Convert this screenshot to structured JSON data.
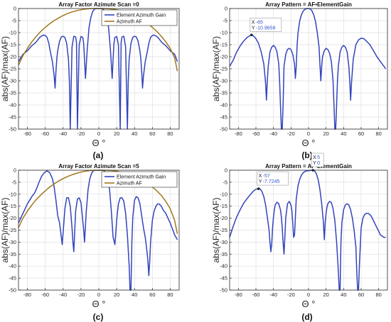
{
  "chart_data": [
    {
      "panel": "(a)",
      "type": "line",
      "title": "Array Factor Azimute Scan =0",
      "xlabel": "Θ °",
      "ylabel": "abs(AF)/max(AF)",
      "xlim": [
        -90,
        90
      ],
      "ylim": [
        -50,
        0
      ],
      "xticks": [
        -80,
        -60,
        -40,
        -20,
        0,
        20,
        40,
        60,
        80
      ],
      "yticks": [
        0,
        -5,
        -10,
        -15,
        -20,
        -25,
        -30,
        -35,
        -40,
        -45,
        -50
      ],
      "grid": true,
      "legend_position": "top-right",
      "series": [
        {
          "name": "Element Azimuth Gain",
          "color": "#3344bb",
          "x": [
            -90,
            -85,
            -80,
            -75,
            -72,
            -70,
            -66,
            -64,
            -62,
            -60,
            -58,
            -56,
            -54,
            -52,
            -50,
            -49,
            -48,
            -47,
            -46,
            -44,
            -42,
            -40,
            -38,
            -36,
            -34,
            -33,
            -32,
            -30,
            -28,
            -26,
            -25,
            -24,
            -22,
            -20,
            -18,
            -17,
            -16,
            -15,
            -13,
            -11,
            -9,
            -7,
            -5,
            -3,
            -1,
            0,
            1,
            3,
            5,
            7,
            9,
            11,
            13,
            15,
            16,
            17,
            18,
            20,
            22,
            24,
            25,
            26,
            28,
            30,
            32,
            33,
            34,
            36,
            38,
            40,
            42,
            44,
            46,
            47,
            48,
            49,
            50,
            52,
            54,
            56,
            58,
            60,
            62,
            64,
            66,
            70,
            72,
            75,
            80,
            85,
            88
          ],
          "y": [
            -22,
            -19,
            -17.5,
            -15.4,
            -14.5,
            -13.8,
            -11.9,
            -11.4,
            -11.0,
            -11.2,
            -12.0,
            -14.5,
            -18.5,
            -22,
            -28,
            -33,
            -26,
            -20.5,
            -17.5,
            -13.5,
            -11.8,
            -11.5,
            -12.0,
            -14.5,
            -21,
            -30,
            -50,
            -16,
            -11.5,
            -11.8,
            -14,
            -50,
            -15,
            -11.6,
            -12.0,
            -14.5,
            -21,
            -29,
            -17,
            -8,
            -3.8,
            -1.4,
            -0.3,
            0,
            -0.1,
            0,
            -0.1,
            0,
            -0.3,
            -1.4,
            -3.8,
            -8,
            -17,
            -29,
            -21,
            -14.5,
            -12.0,
            -11.6,
            -15,
            -50,
            -14,
            -11.8,
            -11.5,
            -16,
            -50,
            -30,
            -21,
            -14.5,
            -12.0,
            -11.5,
            -11.8,
            -13.5,
            -17.5,
            -20.5,
            -26,
            -33,
            -28,
            -22,
            -18.5,
            -14.5,
            -12.0,
            -11.2,
            -11.0,
            -11.4,
            -11.9,
            -13.8,
            -14.5,
            -15.4,
            -17.5,
            -19,
            -22
          ]
        },
        {
          "name": "Azimuth AF",
          "color": "#a0781e",
          "x": [
            -90,
            -85,
            -80,
            -75,
            -70,
            -65,
            -60,
            -55,
            -50,
            -45,
            -40,
            -35,
            -30,
            -25,
            -20,
            -15,
            -10,
            -5,
            0,
            5,
            10,
            15,
            20,
            25,
            30,
            35,
            40,
            45,
            50,
            55,
            60,
            65,
            70,
            75,
            80,
            85,
            88
          ],
          "y": [
            -23.5,
            -19.5,
            -16.5,
            -13.8,
            -11.5,
            -9.5,
            -7.8,
            -6.3,
            -5.0,
            -3.9,
            -2.9,
            -2.1,
            -1.4,
            -0.9,
            -0.5,
            -0.2,
            -0.05,
            0,
            0,
            0,
            -0.05,
            -0.2,
            -0.5,
            -0.9,
            -1.4,
            -2.1,
            -2.9,
            -3.9,
            -5.0,
            -6.3,
            -7.8,
            -9.5,
            -11.5,
            -13.8,
            -16.5,
            -20.5,
            -26
          ]
        }
      ]
    },
    {
      "panel": "(b)",
      "type": "line",
      "title": "Array Pattern = AF•ElementGain",
      "xlabel": "Θ °",
      "ylabel": "abs(AF)/max(AF)",
      "xlim": [
        -90,
        90
      ],
      "ylim": [
        -50,
        0
      ],
      "xticks": [
        -80,
        -60,
        -40,
        -20,
        0,
        20,
        40,
        60,
        80
      ],
      "yticks": [
        0,
        -5,
        -10,
        -15,
        -20,
        -25,
        -30,
        -35,
        -40,
        -45,
        -50
      ],
      "grid": true,
      "datatips": [
        {
          "x": -65,
          "y": -10.9658,
          "x_label": "X",
          "y_label": "Y",
          "x_text": "-65",
          "y_text": "-10.9658"
        }
      ],
      "series": [
        {
          "name": "",
          "color": "#3344bb",
          "x": [
            -90,
            -86,
            -82,
            -78,
            -74,
            -70,
            -67,
            -65,
            -63,
            -60,
            -57,
            -54,
            -51,
            -49,
            -48,
            -47,
            -46,
            -44,
            -42,
            -40,
            -38,
            -36,
            -34,
            -33,
            -32,
            -31,
            -30,
            -29,
            -28,
            -26,
            -24,
            -22,
            -20,
            -18,
            -16,
            -15,
            -14,
            -13,
            -12,
            -10,
            -8,
            -6,
            -4,
            -2,
            0,
            2,
            4,
            6,
            8,
            10,
            12,
            13,
            14,
            15,
            16,
            18,
            20,
            22,
            24,
            26,
            28,
            29,
            30,
            31,
            32,
            33,
            34,
            36,
            38,
            40,
            42,
            44,
            46,
            47,
            48,
            49,
            51,
            54,
            57,
            60,
            63,
            66,
            70,
            74,
            78,
            82,
            86,
            88
          ],
          "y": [
            -24,
            -21.5,
            -18,
            -15.5,
            -13.5,
            -12,
            -11.3,
            -11.0,
            -11.3,
            -12.5,
            -14.5,
            -18,
            -23,
            -31,
            -38,
            -30,
            -24,
            -18,
            -16,
            -15.3,
            -16,
            -18,
            -23,
            -30,
            -40,
            -50,
            -50,
            -40,
            -24,
            -19,
            -17,
            -16.5,
            -17,
            -19,
            -23,
            -29,
            -24,
            -15,
            -10,
            -5,
            -2.5,
            -1,
            -0.3,
            0,
            0,
            -0.2,
            -1,
            -2.7,
            -5.5,
            -10,
            -16,
            -23,
            -30,
            -24,
            -20,
            -17.5,
            -16.5,
            -17,
            -18.5,
            -22,
            -30,
            -40,
            -50,
            -50,
            -40,
            -30,
            -24,
            -18,
            -16,
            -15.3,
            -16,
            -18,
            -24,
            -30,
            -38,
            -31,
            -21,
            -15,
            -13,
            -12.3,
            -12.5,
            -13.5,
            -15,
            -17.5,
            -20,
            -22,
            -24,
            -25
          ]
        }
      ]
    },
    {
      "panel": "(c)",
      "type": "line",
      "title": "Array Factor Azimute Scan =5",
      "xlabel": "Θ °",
      "ylabel": "abs(AF)/max(AF)",
      "xlim": [
        -90,
        90
      ],
      "ylim": [
        -50,
        0
      ],
      "xticks": [
        -80,
        -60,
        -40,
        -20,
        0,
        20,
        40,
        60,
        80
      ],
      "yticks": [
        0,
        -5,
        -10,
        -15,
        -20,
        -25,
        -30,
        -35,
        -40,
        -45,
        -50
      ],
      "grid": true,
      "legend_position": "top-right",
      "series": [
        {
          "name": "Element Azimuth Gain",
          "color": "#3344bb",
          "x": [
            -90,
            -85,
            -80,
            -75,
            -72,
            -70,
            -67,
            -64,
            -61,
            -58,
            -55,
            -52,
            -50,
            -48,
            -46,
            -44,
            -42,
            -41,
            -40,
            -38,
            -36,
            -34,
            -32,
            -30,
            -29,
            -28,
            -26,
            -24,
            -22,
            -20,
            -19,
            -18,
            -17,
            -16,
            -14,
            -12,
            -10,
            -8,
            -6,
            -4,
            -2,
            0,
            2,
            4,
            6,
            8,
            10,
            12,
            14,
            16,
            18,
            19,
            20,
            21,
            22,
            24,
            26,
            28,
            30,
            32,
            34,
            35,
            36,
            37,
            38,
            40,
            42,
            44,
            46,
            48,
            50,
            52,
            54,
            55,
            56,
            57,
            58,
            60,
            62,
            64,
            66,
            68,
            70,
            72,
            75,
            80,
            85,
            88
          ],
          "y": [
            -22,
            -18,
            -14,
            -11,
            -9.5,
            -8,
            -5,
            -2.5,
            -1,
            -0.3,
            -1,
            -3.5,
            -7,
            -12.5,
            -19,
            -22,
            -28,
            -31,
            -26,
            -16,
            -11.5,
            -11.5,
            -15,
            -24,
            -30,
            -34,
            -17,
            -12,
            -11.5,
            -13.5,
            -17,
            -21,
            -25,
            -30,
            -17,
            -8,
            -3.5,
            -1.2,
            -0.2,
            0,
            -0.1,
            0,
            -0.1,
            0,
            -0.2,
            -1.2,
            -3.5,
            -8,
            -17,
            -28,
            -31,
            -26,
            -21,
            -17,
            -14,
            -11.5,
            -11.5,
            -13,
            -18,
            -27,
            -40,
            -50,
            -50,
            -30,
            -20,
            -12.5,
            -11,
            -11.5,
            -14,
            -19,
            -24,
            -28,
            -34,
            -38,
            -44,
            -38,
            -30,
            -21,
            -17,
            -15,
            -14,
            -14.2,
            -15,
            -16.5,
            -18,
            -22,
            -27,
            -29
          ]
        },
        {
          "name": "Azimuth AF",
          "color": "#a0781e",
          "x": [
            -90,
            -85,
            -80,
            -75,
            -70,
            -65,
            -60,
            -55,
            -50,
            -45,
            -40,
            -35,
            -30,
            -25,
            -20,
            -15,
            -10,
            -5,
            0,
            5,
            10,
            15,
            20,
            25,
            30,
            35,
            40,
            45,
            50,
            55,
            60,
            65,
            70,
            75,
            80,
            85,
            88
          ],
          "y": [
            -24,
            -20,
            -17,
            -14.5,
            -12.2,
            -10.3,
            -8.6,
            -7.0,
            -5.7,
            -4.5,
            -3.5,
            -2.6,
            -1.9,
            -1.3,
            -0.8,
            -0.4,
            -0.15,
            -0.03,
            0,
            0,
            -0.03,
            -0.15,
            -0.4,
            -0.8,
            -1.3,
            -1.9,
            -2.6,
            -3.5,
            -4.5,
            -5.7,
            -7.0,
            -8.6,
            -10.5,
            -13,
            -16,
            -21,
            -26.5
          ]
        }
      ]
    },
    {
      "panel": "(d)",
      "type": "line",
      "title": "Array Pattern = AF•ElementGain",
      "xlabel": "Θ °",
      "ylabel": "abs(AF)/max(AF)",
      "xlim": [
        -90,
        90
      ],
      "ylim": [
        -50,
        0
      ],
      "xticks": [
        -80,
        -60,
        -40,
        -20,
        0,
        20,
        40,
        60,
        80
      ],
      "yticks": [
        0,
        -5,
        -10,
        -15,
        -20,
        -25,
        -30,
        -35,
        -40,
        -45,
        -50
      ],
      "grid": true,
      "datatips": [
        {
          "x": -57,
          "y": -7.7245,
          "x_label": "X",
          "y_label": "Y",
          "x_text": "-57",
          "y_text": "-7.7245"
        },
        {
          "x": 5,
          "y": 0,
          "x_label": "X",
          "y_label": "Y",
          "x_text": "5",
          "y_text": "0"
        }
      ],
      "series": [
        {
          "name": "",
          "color": "#3344bb",
          "x": [
            -90,
            -86,
            -82,
            -78,
            -74,
            -70,
            -66,
            -62,
            -59,
            -57,
            -55,
            -53,
            -51,
            -49,
            -47,
            -45,
            -44,
            -43,
            -42,
            -41,
            -40,
            -39,
            -38,
            -36,
            -34,
            -32,
            -31,
            -30,
            -29,
            -28,
            -27,
            -26,
            -24,
            -22,
            -20,
            -19,
            -18,
            -17,
            -16,
            -14,
            -12,
            -10,
            -8,
            -6,
            -4,
            -2,
            0,
            2,
            3,
            5,
            7,
            9,
            11,
            13,
            15,
            17,
            18,
            19,
            20,
            21,
            22,
            24,
            26,
            28,
            30,
            32,
            34,
            35,
            36,
            37,
            38,
            40,
            42,
            44,
            46,
            48,
            50,
            52,
            54,
            55,
            56,
            57,
            58,
            60,
            62,
            64,
            66,
            68,
            70,
            72,
            74,
            76,
            78,
            80,
            82,
            84,
            86,
            88
          ],
          "y": [
            -28,
            -23.5,
            -19.5,
            -16.5,
            -13.8,
            -11.8,
            -10,
            -8.4,
            -7.8,
            -7.7,
            -7.9,
            -9,
            -11,
            -14.5,
            -19.5,
            -25,
            -30,
            -34,
            -31,
            -24,
            -19.5,
            -16.5,
            -14.5,
            -13.3,
            -14,
            -16.5,
            -19.5,
            -24,
            -30,
            -35,
            -28,
            -20,
            -14,
            -13,
            -14.5,
            -17,
            -22,
            -28,
            -27,
            -12,
            -6.5,
            -3.7,
            -2,
            -1,
            -0.5,
            -0.2,
            -0.2,
            -0.1,
            -0.05,
            0,
            -0.3,
            -1.5,
            -4,
            -8,
            -14,
            -22,
            -29,
            -22,
            -18,
            -15.5,
            -14,
            -13,
            -13.5,
            -16,
            -21,
            -30,
            -42,
            -50,
            -50,
            -30,
            -22,
            -16.5,
            -14.5,
            -14,
            -14.5,
            -16.5,
            -20,
            -25,
            -32,
            -42,
            -50,
            -50,
            -40,
            -24,
            -20,
            -18.5,
            -18,
            -18,
            -18.5,
            -19.5,
            -21,
            -22.5,
            -24,
            -25.5,
            -27,
            -27.5,
            -28,
            -28
          ]
        }
      ]
    }
  ],
  "captions": [
    "(a)",
    "(b)",
    "(c)",
    "(d)"
  ]
}
